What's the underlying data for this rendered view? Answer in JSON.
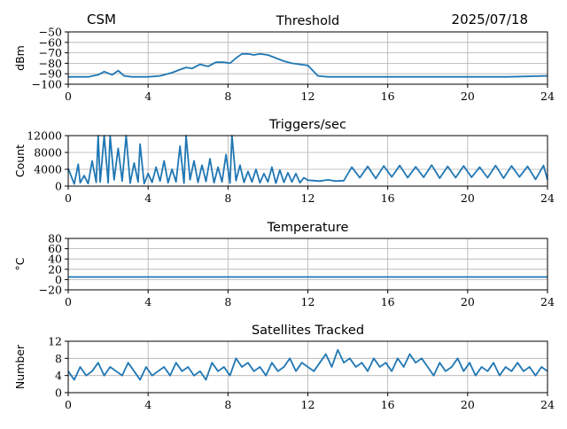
{
  "header": {
    "left": "CSM",
    "right": "2025/07/18"
  },
  "chart_data": [
    {
      "type": "line",
      "title": "Threshold",
      "ylabel": "dBm",
      "xlim": [
        0,
        24
      ],
      "ylim": [
        -100,
        -50
      ],
      "xticks": [
        0,
        4,
        8,
        12,
        16,
        20,
        24
      ],
      "yticks": [
        -50,
        -60,
        -70,
        -80,
        -90,
        -100
      ],
      "ytick_labels": [
        "−50",
        "−60",
        "−70",
        "−80",
        "−90",
        "−100"
      ],
      "grid": true,
      "color": "#1f77b4",
      "x": [
        0,
        1,
        1.5,
        1.8,
        2.2,
        2.5,
        2.8,
        3.2,
        4,
        4.6,
        5.2,
        5.6,
        5.9,
        6.2,
        6.6,
        7,
        7.4,
        7.8,
        8.1,
        8.4,
        8.7,
        9,
        9.3,
        9.6,
        10,
        10.4,
        10.8,
        11.2,
        11.6,
        12,
        12.5,
        13,
        14,
        16,
        18,
        20,
        22,
        24
      ],
      "y": [
        -93,
        -93,
        -91,
        -88,
        -91,
        -87,
        -92,
        -93,
        -93,
        -92,
        -89,
        -86,
        -84,
        -85,
        -81,
        -83,
        -79,
        -79,
        -80,
        -75,
        -71,
        -71,
        -72,
        -71,
        -72,
        -75,
        -78,
        -80,
        -81,
        -82,
        -92,
        -93,
        -93,
        -93,
        -93,
        -93,
        -93,
        -92
      ]
    },
    {
      "type": "line",
      "title": "Triggers/sec",
      "ylabel": "Count",
      "xlim": [
        0,
        24
      ],
      "ylim": [
        0,
        12000
      ],
      "xticks": [
        0,
        4,
        8,
        12,
        16,
        20,
        24
      ],
      "yticks": [
        0,
        4000,
        8000,
        12000
      ],
      "grid": true,
      "color": "#1f77b4",
      "x": [
        0,
        0.3,
        0.5,
        0.6,
        0.8,
        1,
        1.2,
        1.4,
        1.5,
        1.6,
        1.8,
        2,
        2.1,
        2.3,
        2.5,
        2.7,
        2.9,
        3.1,
        3.3,
        3.5,
        3.6,
        3.8,
        4,
        4.2,
        4.4,
        4.6,
        4.8,
        5,
        5.2,
        5.4,
        5.6,
        5.8,
        5.9,
        6.1,
        6.3,
        6.5,
        6.7,
        6.9,
        7.1,
        7.3,
        7.5,
        7.7,
        7.9,
        8.1,
        8.2,
        8.4,
        8.6,
        8.8,
        9,
        9.2,
        9.4,
        9.6,
        9.8,
        10,
        10.2,
        10.4,
        10.6,
        10.8,
        11,
        11.2,
        11.4,
        11.6,
        11.8,
        12,
        12.3,
        12.6,
        13,
        13.4,
        13.8,
        14.2,
        14.6,
        15,
        15.4,
        15.8,
        16.2,
        16.6,
        17,
        17.4,
        17.8,
        18.2,
        18.6,
        19,
        19.4,
        19.8,
        20.2,
        20.6,
        21,
        21.4,
        21.8,
        22.2,
        22.6,
        23,
        23.4,
        23.8,
        24
      ],
      "y": [
        4200,
        500,
        5200,
        800,
        2500,
        600,
        6000,
        900,
        12000,
        1000,
        12000,
        800,
        12000,
        1500,
        9000,
        1200,
        12000,
        700,
        5500,
        1000,
        10000,
        600,
        3000,
        900,
        4500,
        1200,
        6000,
        800,
        4000,
        1000,
        9500,
        700,
        12000,
        1500,
        6000,
        900,
        5000,
        1100,
        6500,
        800,
        4500,
        1000,
        7500,
        700,
        12000,
        1300,
        5000,
        900,
        3500,
        1000,
        4000,
        800,
        3000,
        1000,
        4500,
        700,
        3800,
        900,
        3200,
        1000,
        3000,
        800,
        2000,
        1400,
        1300,
        1200,
        1500,
        1200,
        1300,
        4500,
        2000,
        4700,
        1800,
        4800,
        2200,
        4900,
        2000,
        4600,
        2100,
        5000,
        1900,
        4700,
        2000,
        4800,
        2100,
        4500,
        2000,
        4900,
        1900,
        4800,
        2200,
        4700,
        1600,
        4900,
        1500
      ]
    },
    {
      "type": "line",
      "title": "Temperature",
      "ylabel": "°C",
      "xlim": [
        0,
        24
      ],
      "ylim": [
        -20,
        80
      ],
      "xticks": [
        0,
        4,
        8,
        12,
        16,
        20,
        24
      ],
      "yticks": [
        80,
        60,
        40,
        20,
        0,
        -20
      ],
      "ytick_labels": [
        "80",
        "60",
        "40",
        "20",
        "0",
        "−20"
      ],
      "grid": true,
      "color": "#1f77b4",
      "x": [
        0,
        24
      ],
      "y": [
        5,
        5
      ]
    },
    {
      "type": "line",
      "title": "Satellites Tracked",
      "ylabel": "Number",
      "xlim": [
        0,
        24
      ],
      "ylim": [
        0,
        12
      ],
      "xticks": [
        0,
        4,
        8,
        12,
        16,
        20,
        24
      ],
      "yticks": [
        0,
        4,
        8,
        12
      ],
      "grid": true,
      "color": "#1f77b4",
      "x": [
        0,
        0.3,
        0.6,
        0.9,
        1.2,
        1.5,
        1.8,
        2.1,
        2.4,
        2.7,
        3,
        3.3,
        3.6,
        3.9,
        4.2,
        4.5,
        4.8,
        5.1,
        5.4,
        5.7,
        6,
        6.3,
        6.6,
        6.9,
        7.2,
        7.5,
        7.8,
        8.1,
        8.4,
        8.7,
        9,
        9.3,
        9.6,
        9.9,
        10.2,
        10.5,
        10.8,
        11.1,
        11.4,
        11.7,
        12,
        12.3,
        12.6,
        12.9,
        13.2,
        13.5,
        13.8,
        14.1,
        14.4,
        14.7,
        15,
        15.3,
        15.6,
        15.9,
        16.2,
        16.5,
        16.8,
        17.1,
        17.4,
        17.7,
        18,
        18.3,
        18.6,
        18.9,
        19.2,
        19.5,
        19.8,
        20.1,
        20.4,
        20.7,
        21,
        21.3,
        21.6,
        21.9,
        22.2,
        22.5,
        22.8,
        23.1,
        23.4,
        23.7,
        24
      ],
      "y": [
        5,
        3,
        6,
        4,
        5,
        7,
        4,
        6,
        5,
        4,
        7,
        5,
        3,
        6,
        4,
        5,
        6,
        4,
        7,
        5,
        6,
        4,
        5,
        3,
        7,
        5,
        6,
        4,
        8,
        6,
        7,
        5,
        6,
        4,
        7,
        5,
        6,
        8,
        5,
        7,
        6,
        5,
        7,
        9,
        6,
        10,
        7,
        8,
        6,
        7,
        5,
        8,
        6,
        7,
        5,
        8,
        6,
        9,
        7,
        8,
        6,
        4,
        7,
        5,
        6,
        8,
        5,
        7,
        4,
        6,
        5,
        7,
        4,
        6,
        5,
        7,
        5,
        6,
        4,
        6,
        5
      ]
    }
  ]
}
